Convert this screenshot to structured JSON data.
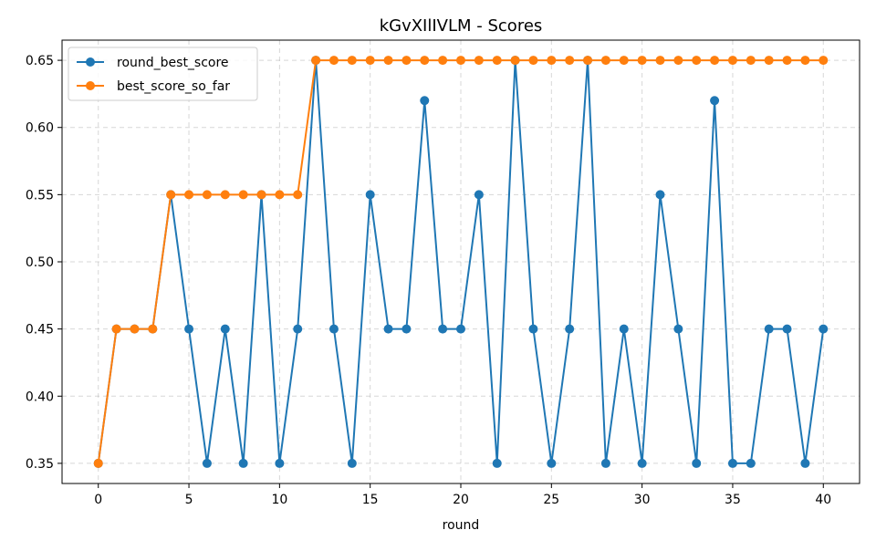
{
  "chart_data": {
    "type": "line",
    "title": "kGvXIlIVLM - Scores",
    "xlabel": "round",
    "ylabel": "",
    "xlim": [
      -2,
      42
    ],
    "ylim": [
      0.335,
      0.665
    ],
    "xticks": [
      0,
      5,
      10,
      15,
      20,
      25,
      30,
      35,
      40
    ],
    "xtick_labels": [
      "0",
      "5",
      "10",
      "15",
      "20",
      "25",
      "30",
      "35",
      "40"
    ],
    "yticks": [
      0.35,
      0.4,
      0.45,
      0.5,
      0.55,
      0.6,
      0.65
    ],
    "ytick_labels": [
      "0.35",
      "0.40",
      "0.45",
      "0.50",
      "0.55",
      "0.60",
      "0.65"
    ],
    "grid": true,
    "legend_position": "top-left",
    "x": [
      0,
      1,
      2,
      3,
      4,
      5,
      6,
      7,
      8,
      9,
      10,
      11,
      12,
      13,
      14,
      15,
      16,
      17,
      18,
      19,
      20,
      21,
      22,
      23,
      24,
      25,
      26,
      27,
      28,
      29,
      30,
      31,
      32,
      33,
      34,
      35,
      36,
      37,
      38,
      39,
      40
    ],
    "series": [
      {
        "name": "round_best_score",
        "color": "#1f77b4",
        "marker": "circle",
        "values": [
          0.35,
          0.45,
          0.45,
          0.45,
          0.55,
          0.45,
          0.35,
          0.45,
          0.35,
          0.55,
          0.35,
          0.45,
          0.65,
          0.45,
          0.35,
          0.55,
          0.45,
          0.45,
          0.62,
          0.45,
          0.45,
          0.55,
          0.35,
          0.65,
          0.45,
          0.35,
          0.45,
          0.65,
          0.35,
          0.45,
          0.35,
          0.55,
          0.45,
          0.35,
          0.62,
          0.35,
          0.35,
          0.45,
          0.45,
          0.35,
          0.45
        ]
      },
      {
        "name": "best_score_so_far",
        "color": "#ff7f0e",
        "marker": "circle",
        "values": [
          0.35,
          0.45,
          0.45,
          0.45,
          0.55,
          0.55,
          0.55,
          0.55,
          0.55,
          0.55,
          0.55,
          0.55,
          0.65,
          0.65,
          0.65,
          0.65,
          0.65,
          0.65,
          0.65,
          0.65,
          0.65,
          0.65,
          0.65,
          0.65,
          0.65,
          0.65,
          0.65,
          0.65,
          0.65,
          0.65,
          0.65,
          0.65,
          0.65,
          0.65,
          0.65,
          0.65,
          0.65,
          0.65,
          0.65,
          0.65,
          0.65
        ]
      }
    ]
  }
}
